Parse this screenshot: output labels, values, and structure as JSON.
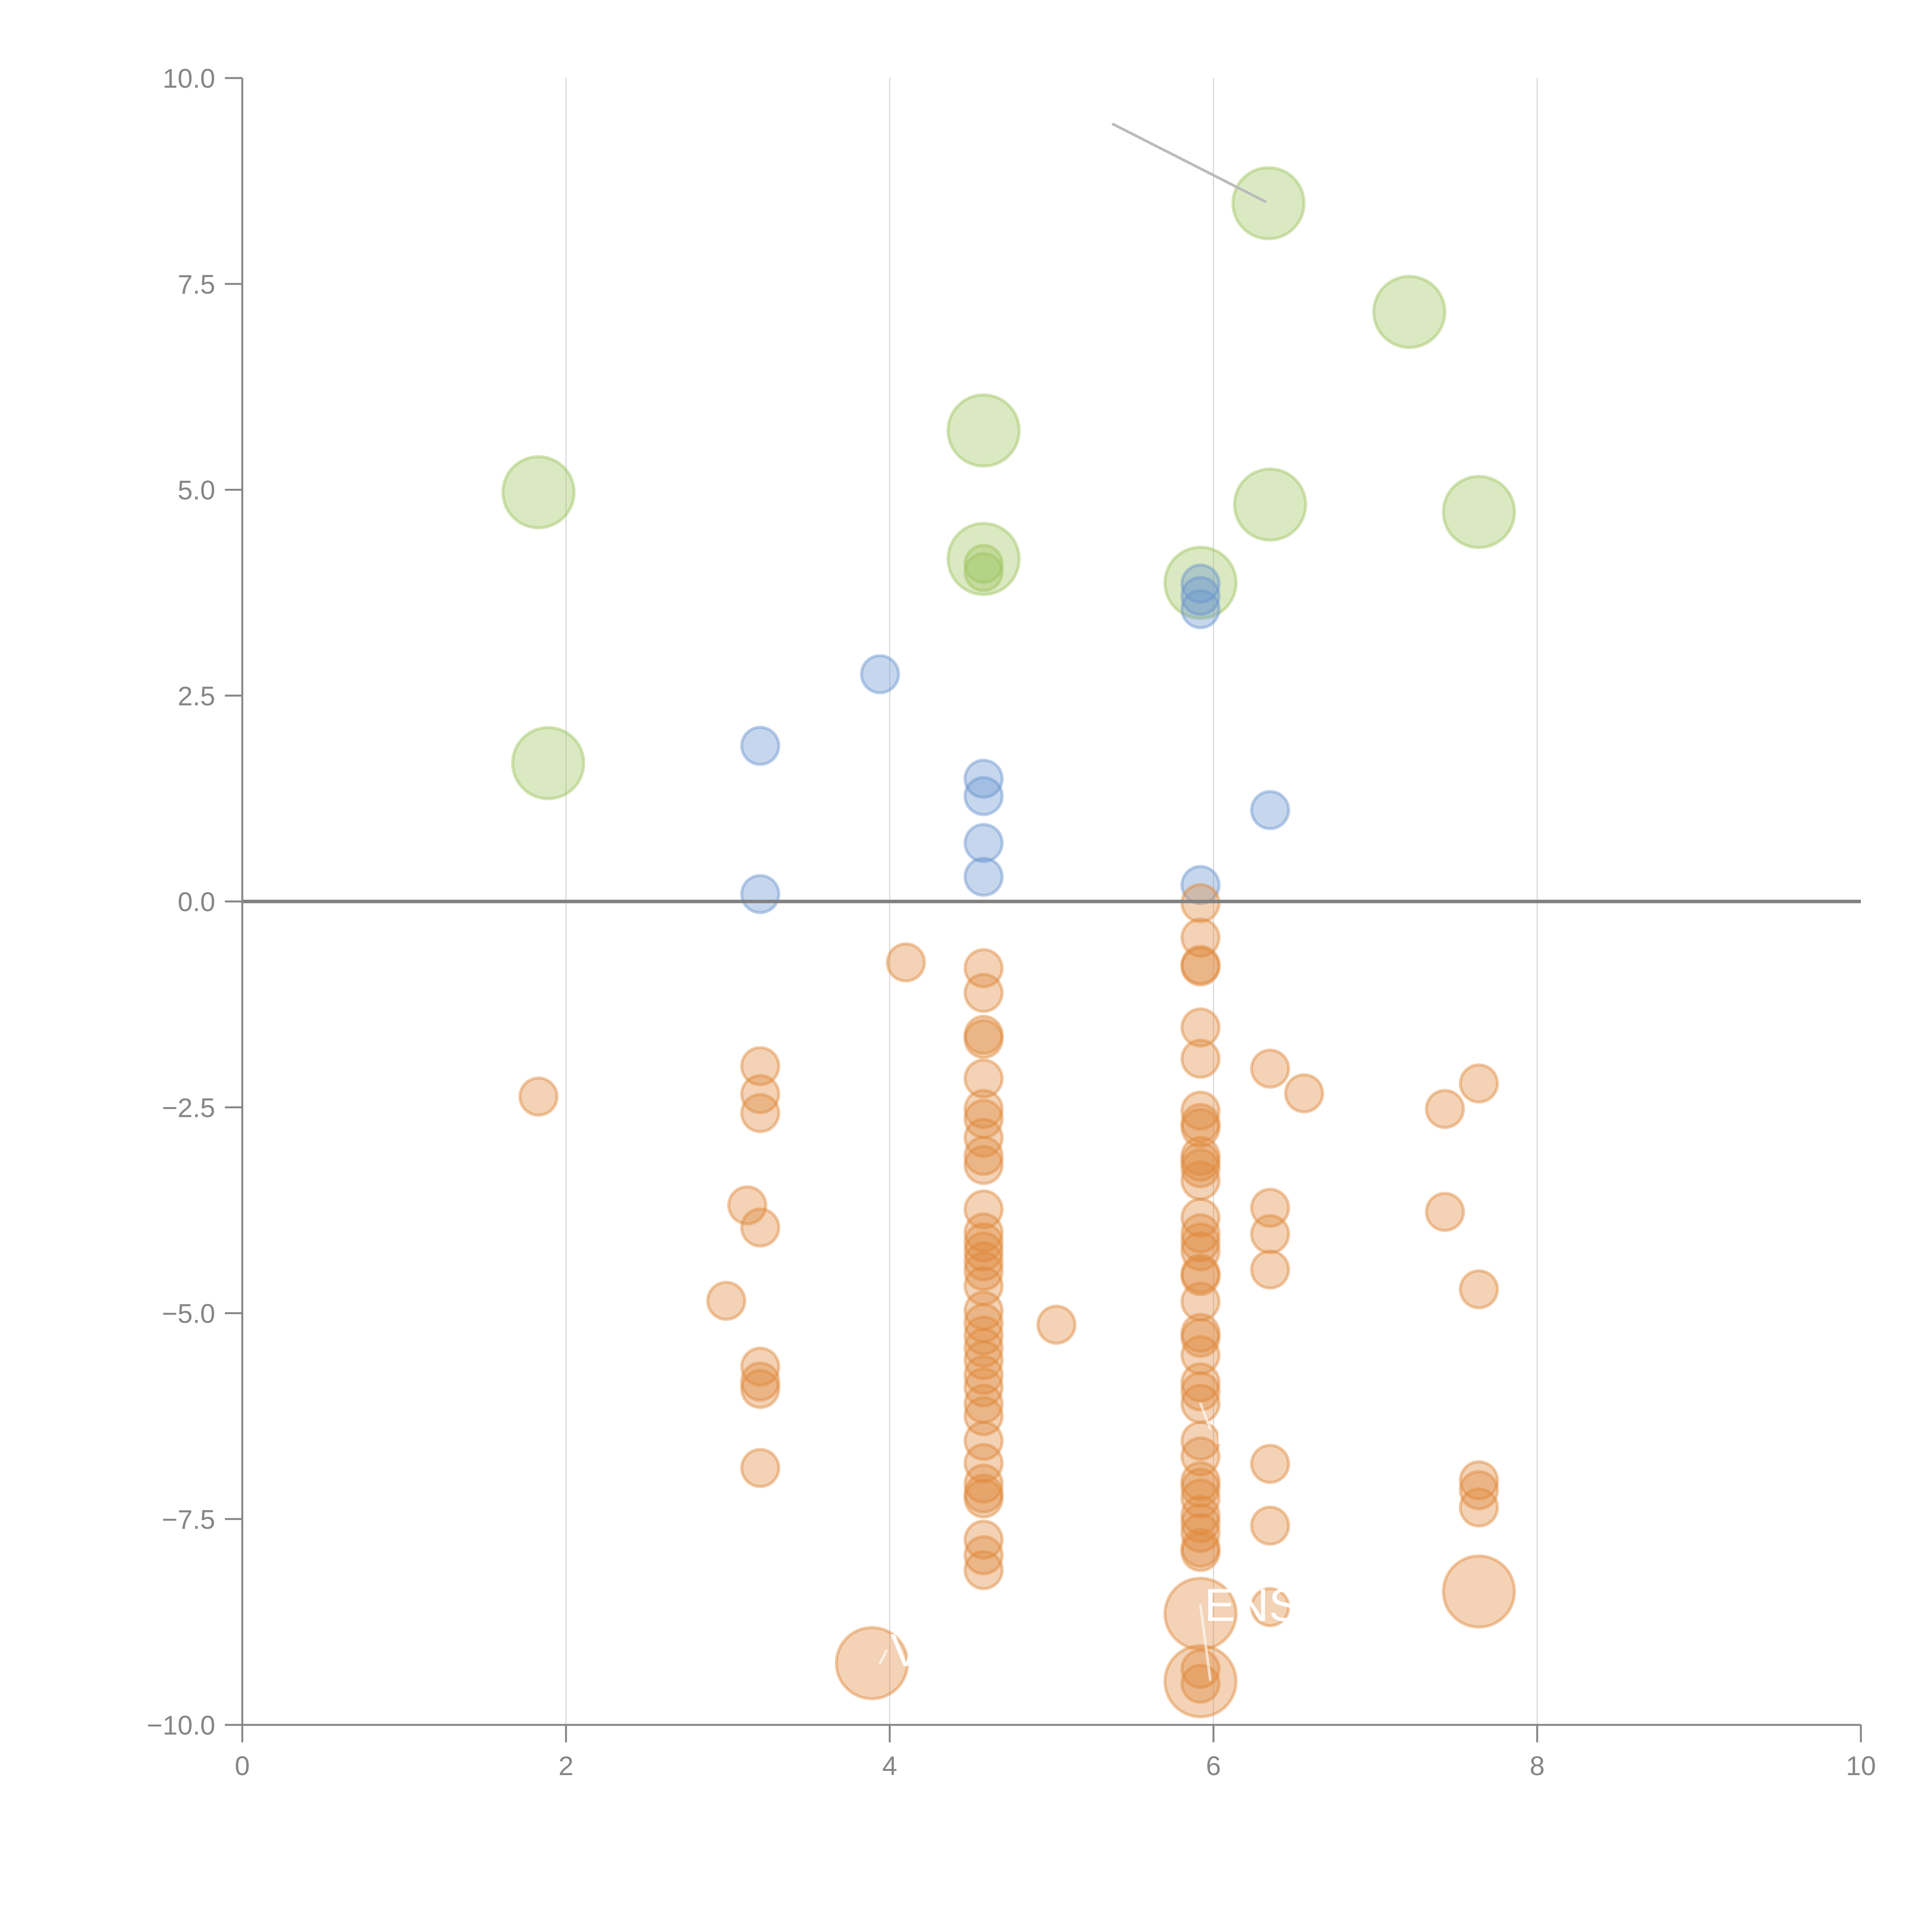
{
  "chart_data": {
    "type": "scatter",
    "title": "",
    "xlabel": "",
    "ylabel": "",
    "xlim": [
      0,
      10
    ],
    "ylim": [
      -10,
      10
    ],
    "grid": "vertical",
    "zero_line": true,
    "xticks": [
      "0",
      "2",
      "4",
      "6",
      "8",
      "10"
    ],
    "xtick_values": [
      0,
      2,
      4,
      6,
      8,
      10
    ],
    "yticks": [
      "−10.0",
      "−7.5",
      "−5.0",
      "−2.5",
      "0.0",
      "2.5",
      "5.0",
      "7.5",
      "10.0"
    ],
    "ytick_values": [
      -10,
      -7.5,
      -5,
      -2.5,
      0,
      2.5,
      5,
      7.5,
      10
    ],
    "legend": null,
    "series": [
      {
        "name": "green",
        "color": "#9dc45f",
        "points": [
          {
            "x": 6.34,
            "y": 8.48,
            "size": "large"
          },
          {
            "x": 7.21,
            "y": 7.16,
            "size": "large"
          },
          {
            "x": 4.58,
            "y": 5.72,
            "size": "large"
          },
          {
            "x": 1.83,
            "y": 4.97,
            "size": "large"
          },
          {
            "x": 6.35,
            "y": 4.82,
            "size": "large"
          },
          {
            "x": 7.64,
            "y": 4.73,
            "size": "large"
          },
          {
            "x": 4.58,
            "y": 4.16,
            "size": "large"
          },
          {
            "x": 5.92,
            "y": 3.87,
            "size": "large"
          },
          {
            "x": 1.89,
            "y": 1.68,
            "size": "large"
          },
          {
            "x": 4.58,
            "y": 4.1,
            "size": "small"
          },
          {
            "x": 4.58,
            "y": 4.0,
            "size": "small"
          }
        ]
      },
      {
        "name": "blue",
        "color": "#6a95cf",
        "points": [
          {
            "x": 5.92,
            "y": 3.86,
            "size": "small"
          },
          {
            "x": 5.92,
            "y": 3.71,
            "size": "small"
          },
          {
            "x": 5.92,
            "y": 3.55,
            "size": "small"
          },
          {
            "x": 3.94,
            "y": 2.76,
            "size": "small"
          },
          {
            "x": 3.2,
            "y": 1.89,
            "size": "small"
          },
          {
            "x": 4.58,
            "y": 1.49,
            "size": "small"
          },
          {
            "x": 4.58,
            "y": 1.28,
            "size": "small"
          },
          {
            "x": 6.35,
            "y": 1.11,
            "size": "small"
          },
          {
            "x": 4.58,
            "y": 0.71,
            "size": "small"
          },
          {
            "x": 4.58,
            "y": 0.3,
            "size": "small"
          },
          {
            "x": 5.92,
            "y": 0.2,
            "size": "small"
          },
          {
            "x": 3.2,
            "y": 0.09,
            "size": "small"
          }
        ]
      },
      {
        "name": "orange",
        "color": "#e08a3c",
        "points": [
          {
            "x": 5.92,
            "y": -0.02,
            "size": "small"
          },
          {
            "x": 5.92,
            "y": -0.44,
            "size": "small"
          },
          {
            "x": 5.92,
            "y": -0.77,
            "size": "small"
          },
          {
            "x": 5.92,
            "y": -0.79,
            "size": "small"
          },
          {
            "x": 5.92,
            "y": -1.53,
            "size": "small"
          },
          {
            "x": 5.92,
            "y": -1.91,
            "size": "small"
          },
          {
            "x": 5.92,
            "y": -2.54,
            "size": "small"
          },
          {
            "x": 5.92,
            "y": -2.69,
            "size": "small"
          },
          {
            "x": 5.92,
            "y": -2.75,
            "size": "small"
          },
          {
            "x": 5.92,
            "y": -3.09,
            "size": "small"
          },
          {
            "x": 5.92,
            "y": -3.16,
            "size": "small"
          },
          {
            "x": 5.92,
            "y": -3.24,
            "size": "small"
          },
          {
            "x": 5.92,
            "y": -3.39,
            "size": "small"
          },
          {
            "x": 5.92,
            "y": -3.84,
            "size": "small"
          },
          {
            "x": 5.92,
            "y": -4.03,
            "size": "small"
          },
          {
            "x": 5.92,
            "y": -4.14,
            "size": "small"
          },
          {
            "x": 5.92,
            "y": -4.25,
            "size": "small"
          },
          {
            "x": 5.92,
            "y": -4.52,
            "size": "small"
          },
          {
            "x": 5.92,
            "y": -4.55,
            "size": "small"
          },
          {
            "x": 5.92,
            "y": -4.86,
            "size": "small"
          },
          {
            "x": 5.92,
            "y": -5.24,
            "size": "small"
          },
          {
            "x": 5.92,
            "y": -5.3,
            "size": "small"
          },
          {
            "x": 5.92,
            "y": -5.51,
            "size": "small"
          },
          {
            "x": 5.92,
            "y": -5.84,
            "size": "small"
          },
          {
            "x": 5.92,
            "y": -5.95,
            "size": "small"
          },
          {
            "x": 5.92,
            "y": -6.1,
            "size": "small"
          },
          {
            "x": 5.92,
            "y": -6.55,
            "size": "small"
          },
          {
            "x": 5.92,
            "y": -6.74,
            "size": "small"
          },
          {
            "x": 5.92,
            "y": -7.04,
            "size": "small"
          },
          {
            "x": 5.92,
            "y": -7.12,
            "size": "small"
          },
          {
            "x": 5.92,
            "y": -7.25,
            "size": "small"
          },
          {
            "x": 5.92,
            "y": -7.45,
            "size": "small"
          },
          {
            "x": 5.92,
            "y": -7.55,
            "size": "small"
          },
          {
            "x": 5.92,
            "y": -7.67,
            "size": "small"
          },
          {
            "x": 5.92,
            "y": -7.85,
            "size": "small"
          },
          {
            "x": 5.92,
            "y": -7.9,
            "size": "small"
          },
          {
            "x": 5.92,
            "y": -9.32,
            "size": "small"
          },
          {
            "x": 5.92,
            "y": -9.5,
            "size": "small"
          },
          {
            "x": 5.92,
            "y": -8.65,
            "size": "large"
          },
          {
            "x": 5.92,
            "y": -9.47,
            "size": "large"
          },
          {
            "x": 4.58,
            "y": -0.81,
            "size": "small"
          },
          {
            "x": 4.58,
            "y": -1.11,
            "size": "small"
          },
          {
            "x": 4.58,
            "y": -1.62,
            "size": "small"
          },
          {
            "x": 4.58,
            "y": -1.67,
            "size": "small"
          },
          {
            "x": 4.58,
            "y": -2.15,
            "size": "small"
          },
          {
            "x": 4.58,
            "y": -2.52,
            "size": "small"
          },
          {
            "x": 4.58,
            "y": -2.64,
            "size": "small"
          },
          {
            "x": 4.58,
            "y": -2.87,
            "size": "small"
          },
          {
            "x": 4.58,
            "y": -3.09,
            "size": "small"
          },
          {
            "x": 4.58,
            "y": -3.2,
            "size": "small"
          },
          {
            "x": 4.58,
            "y": -3.74,
            "size": "small"
          },
          {
            "x": 4.58,
            "y": -4.02,
            "size": "small"
          },
          {
            "x": 4.58,
            "y": -4.14,
            "size": "small"
          },
          {
            "x": 4.58,
            "y": -4.25,
            "size": "small"
          },
          {
            "x": 4.58,
            "y": -4.37,
            "size": "small"
          },
          {
            "x": 4.58,
            "y": -4.49,
            "size": "small"
          },
          {
            "x": 4.58,
            "y": -4.67,
            "size": "small"
          },
          {
            "x": 4.58,
            "y": -4.97,
            "size": "small"
          },
          {
            "x": 4.58,
            "y": -5.12,
            "size": "small"
          },
          {
            "x": 4.58,
            "y": -5.27,
            "size": "small"
          },
          {
            "x": 4.58,
            "y": -5.42,
            "size": "small"
          },
          {
            "x": 4.58,
            "y": -5.57,
            "size": "small"
          },
          {
            "x": 4.58,
            "y": -5.75,
            "size": "small"
          },
          {
            "x": 4.58,
            "y": -5.9,
            "size": "small"
          },
          {
            "x": 4.58,
            "y": -6.1,
            "size": "small"
          },
          {
            "x": 4.58,
            "y": -6.25,
            "size": "small"
          },
          {
            "x": 4.58,
            "y": -6.55,
            "size": "small"
          },
          {
            "x": 4.58,
            "y": -6.82,
            "size": "small"
          },
          {
            "x": 4.58,
            "y": -7.07,
            "size": "small"
          },
          {
            "x": 4.58,
            "y": -7.19,
            "size": "small"
          },
          {
            "x": 4.58,
            "y": -7.25,
            "size": "small"
          },
          {
            "x": 4.58,
            "y": -7.75,
            "size": "small"
          },
          {
            "x": 4.58,
            "y": -7.94,
            "size": "small"
          },
          {
            "x": 4.58,
            "y": -8.12,
            "size": "small"
          },
          {
            "x": 4.1,
            "y": -0.74,
            "size": "small"
          },
          {
            "x": 1.83,
            "y": -2.37,
            "size": "small"
          },
          {
            "x": 3.2,
            "y": -2.0,
            "size": "small"
          },
          {
            "x": 3.2,
            "y": -2.34,
            "size": "small"
          },
          {
            "x": 3.2,
            "y": -2.57,
            "size": "small"
          },
          {
            "x": 3.12,
            "y": -3.69,
            "size": "small"
          },
          {
            "x": 3.2,
            "y": -3.96,
            "size": "small"
          },
          {
            "x": 2.99,
            "y": -4.85,
            "size": "small"
          },
          {
            "x": 3.2,
            "y": -5.65,
            "size": "small"
          },
          {
            "x": 3.2,
            "y": -5.83,
            "size": "small"
          },
          {
            "x": 3.2,
            "y": -5.92,
            "size": "small"
          },
          {
            "x": 3.2,
            "y": -6.88,
            "size": "small"
          },
          {
            "x": 5.03,
            "y": -5.14,
            "size": "small"
          },
          {
            "x": 6.35,
            "y": -2.03,
            "size": "small"
          },
          {
            "x": 6.56,
            "y": -2.33,
            "size": "small"
          },
          {
            "x": 6.35,
            "y": -3.72,
            "size": "small"
          },
          {
            "x": 6.35,
            "y": -4.04,
            "size": "small"
          },
          {
            "x": 6.35,
            "y": -4.47,
            "size": "small"
          },
          {
            "x": 6.35,
            "y": -6.83,
            "size": "small"
          },
          {
            "x": 6.35,
            "y": -7.58,
            "size": "small"
          },
          {
            "x": 6.35,
            "y": -8.57,
            "size": "small"
          },
          {
            "x": 7.43,
            "y": -2.52,
            "size": "small"
          },
          {
            "x": 7.43,
            "y": -3.77,
            "size": "small"
          },
          {
            "x": 7.64,
            "y": -2.21,
            "size": "small"
          },
          {
            "x": 7.64,
            "y": -4.71,
            "size": "small"
          },
          {
            "x": 7.64,
            "y": -7.03,
            "size": "small"
          },
          {
            "x": 7.64,
            "y": -7.15,
            "size": "small"
          },
          {
            "x": 7.64,
            "y": -7.36,
            "size": "small"
          },
          {
            "x": 7.64,
            "y": -8.38,
            "size": "large"
          },
          {
            "x": 3.89,
            "y": -9.25,
            "size": "large"
          }
        ]
      }
    ],
    "annotations": [
      {
        "text": "I",
        "x": 5.98,
        "y": -6.4,
        "color": "#ffffff",
        "leader_to": {
          "x": 5.92,
          "y": -6.1
        }
      },
      {
        "text": "ENS",
        "x": 5.92,
        "y": -8.55,
        "color": "#ffffff",
        "leader_to": {
          "x": 5.98,
          "y": -9.45
        }
      },
      {
        "text": "V",
        "x": 3.98,
        "y": -9.1,
        "color": "#ffffff",
        "leader_to": {
          "x": 3.94,
          "y": -9.25
        }
      },
      {
        "text": "",
        "x": 5.38,
        "y": 9.44,
        "color": "#bbbbbb",
        "leader_to": {
          "x": 6.32,
          "y": 8.5
        }
      }
    ]
  }
}
